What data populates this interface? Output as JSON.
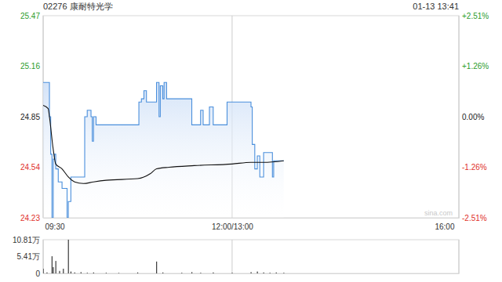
{
  "chart_data": [
    {
      "type": "line",
      "title": "02276 康耐特光学",
      "subtitle": "01-13 13:41",
      "annotation": "sina.com",
      "xlim": [
        0,
        330
      ],
      "xticks": [
        {
          "value": 0,
          "label": "09:30"
        },
        {
          "value": 150,
          "label": "12:00/13:00"
        },
        {
          "value": 330,
          "label": "16:00"
        }
      ],
      "ylim": [
        24.23,
        25.47
      ],
      "yticks": [
        25.47,
        25.16,
        24.85,
        24.54,
        24.23
      ],
      "y2lim": [
        -2.51,
        2.51
      ],
      "y2ticks": [
        {
          "value": 2.51,
          "label": "+2.51%"
        },
        {
          "value": 1.26,
          "label": "+1.26%"
        },
        {
          "value": 0,
          "label": "0.00%"
        },
        {
          "value": -1.26,
          "label": "-1.26%"
        },
        {
          "value": -2.51,
          "label": "-2.51%"
        }
      ],
      "grid": true,
      "series": [
        {
          "color": "#4a8fdc",
          "x": [
            0,
            4,
            5,
            6,
            7,
            8,
            9,
            10,
            12,
            15,
            17,
            19,
            20,
            22,
            32,
            33,
            35,
            38,
            39,
            40,
            42,
            44,
            75,
            76,
            78,
            80,
            82,
            85,
            89,
            90,
            92,
            93,
            95,
            96,
            98,
            100,
            117,
            118,
            122,
            125,
            127,
            132,
            135,
            143,
            146,
            165,
            166,
            168,
            170,
            172,
            175,
            176,
            180,
            182,
            183,
            186,
            191
          ],
          "values": [
            25.06,
            25.06,
            24.85,
            24.62,
            24.23,
            24.59,
            24.62,
            24.53,
            24.45,
            24.41,
            24.41,
            24.23,
            24.33,
            24.48,
            24.48,
            24.85,
            24.89,
            24.85,
            24.7,
            24.85,
            24.8,
            24.8,
            24.8,
            24.94,
            24.96,
            25.01,
            24.94,
            24.94,
            24.94,
            25.06,
            24.85,
            25.04,
            24.96,
            25.06,
            24.96,
            24.96,
            24.96,
            24.8,
            24.8,
            24.89,
            24.8,
            24.91,
            24.8,
            24.8,
            24.94,
            24.91,
            24.68,
            24.53,
            24.61,
            24.48,
            24.63,
            24.63,
            24.63,
            24.48,
            24.58,
            24.58,
            24.58
          ]
        },
        {
          "color": "#111111",
          "x": [
            0,
            4,
            5,
            8,
            10,
            15,
            20,
            25,
            32,
            40,
            50,
            75,
            85,
            90,
            100,
            120,
            150,
            165,
            175,
            191
          ],
          "values": [
            24.92,
            24.9,
            24.85,
            24.65,
            24.56,
            24.53,
            24.48,
            24.45,
            24.44,
            24.45,
            24.46,
            24.47,
            24.5,
            24.53,
            24.54,
            24.55,
            24.56,
            24.57,
            24.57,
            24.58
          ]
        }
      ]
    },
    {
      "type": "bar",
      "color": "#3a3a3a",
      "tick_labels": "y",
      "grid": true,
      "xlim": [
        0,
        330
      ],
      "xticks": [
        0,
        150,
        330
      ],
      "ylim": [
        0,
        108100
      ],
      "yticks": [
        {
          "value": 108100,
          "label": "10.81万"
        },
        {
          "value": 54100,
          "label": "5.41万"
        },
        0
      ],
      "x": [
        0,
        3,
        7,
        8,
        10,
        13,
        16,
        20,
        22,
        25,
        30,
        35,
        40,
        50,
        60,
        75,
        90,
        95,
        110,
        118,
        125,
        135,
        150,
        165,
        170,
        175,
        180,
        185,
        191
      ],
      "values": [
        15000,
        3000,
        55000,
        20000,
        40000,
        8000,
        15000,
        108100,
        6000,
        3000,
        4000,
        2000,
        3000,
        2000,
        1500,
        3000,
        38000,
        3000,
        2000,
        4000,
        2000,
        3000,
        2000,
        4000,
        6000,
        3000,
        2000,
        3000,
        2000
      ]
    }
  ]
}
